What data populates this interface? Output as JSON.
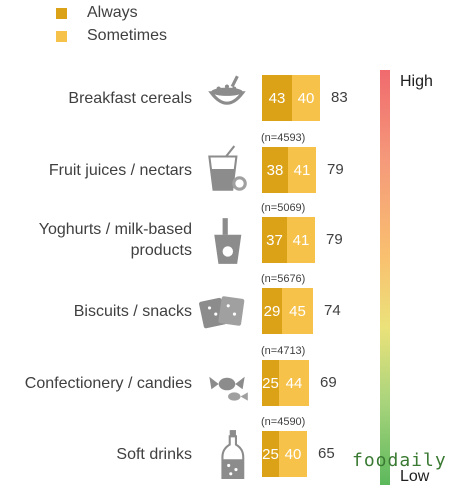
{
  "legend": [
    {
      "label": "Always",
      "color": "#dba218"
    },
    {
      "label": "Sometimes",
      "color": "#f6c24a"
    }
  ],
  "scale": {
    "high_label": "High",
    "low_label": "Low"
  },
  "watermark": "foodaily",
  "chart_data": {
    "type": "bar",
    "stacked": true,
    "orientation": "horizontal",
    "categories": [
      "Breakfast cereals",
      "Fruit juices / nectars",
      "Yoghurts / milk-based products",
      "Biscuits / snacks",
      "Confectionery / candies",
      "Soft drinks"
    ],
    "series": [
      {
        "name": "Always",
        "values": [
          43,
          38,
          37,
          29,
          25,
          25
        ]
      },
      {
        "name": "Sometimes",
        "values": [
          40,
          41,
          41,
          45,
          44,
          40
        ]
      }
    ],
    "totals": [
      83,
      79,
      79,
      74,
      69,
      65
    ],
    "sample_sizes": [
      "",
      "(n=4593)",
      "(n=5069)",
      "(n=5676)",
      "(n=4713)",
      "(n=4590)"
    ],
    "icons": [
      "cereal-bowl-icon",
      "juice-glass-icon",
      "yoghurt-cup-icon",
      "biscuits-icon",
      "candies-icon",
      "soda-bottle-icon"
    ]
  }
}
